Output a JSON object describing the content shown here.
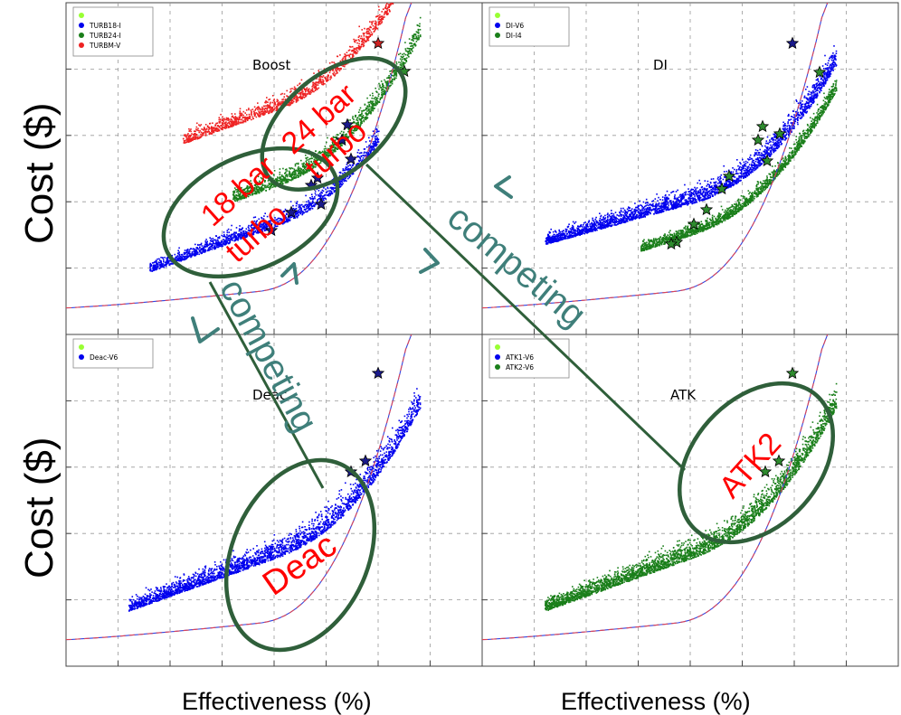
{
  "axes": {
    "ylabel": "Cost ($)",
    "xlabel": "Effectiveness (%)"
  },
  "panels": [
    {
      "title": "Boost",
      "legend": [
        "TURB18-I",
        "TURB24-I",
        "TURBM-V"
      ],
      "legend_colors": [
        "#99ff33",
        "#0000ee",
        "#1a7f1a",
        "#ee2222"
      ]
    },
    {
      "title": "DI",
      "legend": [
        "DI-V6",
        "DI-I4"
      ],
      "legend_colors": [
        "#99ff33",
        "#0000ee",
        "#1a7f1a"
      ]
    },
    {
      "title": "Deac",
      "legend": [
        "Deac-V6"
      ],
      "legend_colors": [
        "#99ff33",
        "#0000ee"
      ]
    },
    {
      "title": "ATK",
      "legend": [
        "ATK1-V6",
        "ATK2-V6"
      ],
      "legend_colors": [
        "#99ff33",
        "#0000ee",
        "#1a7f1a"
      ]
    }
  ],
  "annotations": {
    "turbo18": [
      "18 bar",
      "turbo"
    ],
    "turbo24": [
      "24 bar",
      "turbo"
    ],
    "deac": "Deac",
    "atk2": "ATK2",
    "competing": "competing"
  },
  "colors": {
    "ellipse": "#2f5f3a",
    "arrow": "#3f7f7a",
    "annotation_red": "#ff0000"
  },
  "chart_data": [
    {
      "type": "scatter",
      "title": "Boost",
      "ylabel": "Cost ($)",
      "xlabel": "",
      "grid": true,
      "series": [
        {
          "name": "TURB18-I",
          "color": "#0000ee"
        },
        {
          "name": "TURB24-I",
          "color": "#1a7f1a"
        },
        {
          "name": "TURBM-V",
          "color": "#ee2222"
        }
      ]
    },
    {
      "type": "scatter",
      "title": "DI",
      "ylabel": "",
      "xlabel": "",
      "grid": true,
      "series": [
        {
          "name": "DI-V6",
          "color": "#0000ee"
        },
        {
          "name": "DI-I4",
          "color": "#1a7f1a"
        }
      ]
    },
    {
      "type": "scatter",
      "title": "Deac",
      "ylabel": "Cost ($)",
      "xlabel": "Effectiveness (%)",
      "grid": true,
      "series": [
        {
          "name": "Deac-V6",
          "color": "#0000ee"
        }
      ]
    },
    {
      "type": "scatter",
      "title": "ATK",
      "ylabel": "",
      "xlabel": "Effectiveness (%)",
      "grid": true,
      "series": [
        {
          "name": "ATK1-V6",
          "color": "#0000ee"
        },
        {
          "name": "ATK2-V6",
          "color": "#1a7f1a"
        }
      ]
    }
  ]
}
